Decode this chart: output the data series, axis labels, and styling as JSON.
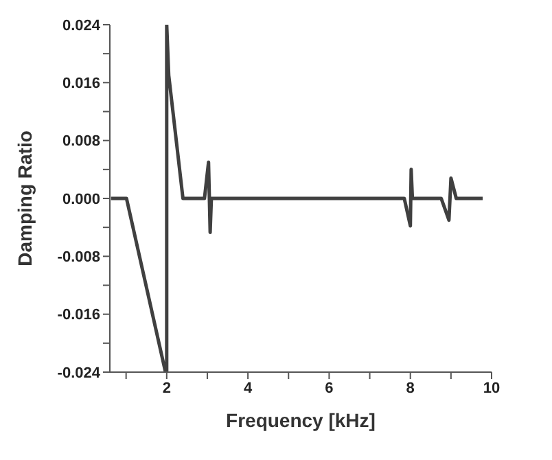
{
  "chart_data": {
    "type": "line",
    "xlabel": "Frequency [kHz]",
    "ylabel": "Damping Ratio",
    "xlim": [
      0.6,
      10
    ],
    "ylim": [
      -0.024,
      0.024
    ],
    "xticks": [
      {
        "value": 1,
        "label": null
      },
      2,
      {
        "value": 3,
        "label": null
      },
      4,
      {
        "value": 5,
        "label": null
      },
      6,
      {
        "value": 7,
        "label": null
      },
      8,
      {
        "value": 9,
        "label": null
      },
      10
    ],
    "yticks": [
      -0.024,
      {
        "value": -0.02,
        "label": null
      },
      -0.016,
      {
        "value": -0.012,
        "label": null
      },
      -0.008,
      {
        "value": -0.004,
        "label": null
      },
      {
        "value": 0,
        "label": "0.000"
      },
      {
        "value": 0.004,
        "label": null
      },
      0.008,
      {
        "value": 0.012,
        "label": null
      },
      0.016,
      {
        "value": 0.02,
        "label": null
      },
      0.024
    ],
    "grid": false,
    "legend": false,
    "marker": "none",
    "line_style": "solid",
    "series": [
      {
        "color": "#404040",
        "x": [
          0.63,
          1.01,
          1.97,
          2.0,
          2.0,
          2.05,
          2.4,
          2.93,
          3.03,
          3.07,
          3.1,
          7.85,
          8.0,
          8.02,
          8.05,
          8.76,
          8.95,
          9.0,
          9.13,
          9.78
        ],
        "values": [
          0,
          0,
          -0.024,
          -0.024,
          0.024,
          0.017,
          0,
          0,
          0.005,
          -0.0047,
          0,
          0,
          -0.0038,
          0.004,
          0,
          0,
          -0.003,
          0.0028,
          0,
          0
        ]
      }
    ]
  }
}
